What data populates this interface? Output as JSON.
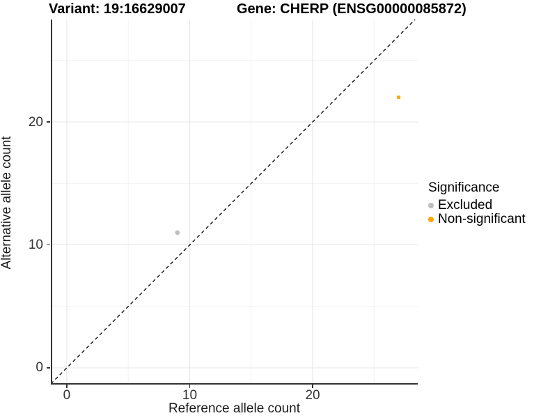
{
  "titles": {
    "left": "Variant: 19:16629007",
    "right": "Gene: CHERP (ENSG00000085872)"
  },
  "chart_data": {
    "type": "scatter",
    "xlabel": "Reference allele count",
    "ylabel": "Alternative allele count",
    "xlim": [
      -1.3,
      28.55
    ],
    "ylim": [
      -1.36,
      28.33
    ],
    "x_ticks": [
      0,
      10,
      20
    ],
    "y_ticks": [
      0,
      10,
      20
    ],
    "x_minor_ticks": [
      5,
      15,
      25
    ],
    "y_minor_ticks": [
      5,
      15,
      25
    ],
    "grid": true,
    "identity_line": {
      "style": "dashed",
      "color": "#000000",
      "from": -1.3,
      "to": 28.33
    },
    "series": [
      {
        "name": "Excluded",
        "color": "#BEBEBE",
        "marker_radius": 3.4,
        "points": [
          [
            9,
            11
          ]
        ]
      },
      {
        "name": "Non-significant",
        "color": "#FFA500",
        "marker_radius": 2.7,
        "points": [
          [
            27,
            22
          ]
        ]
      }
    ],
    "legend": {
      "title": "Significance",
      "position": "right",
      "items": [
        {
          "label": "Excluded",
          "color": "#BEBEBE"
        },
        {
          "label": "Non-significant",
          "color": "#FFA500"
        }
      ]
    }
  },
  "style_colors": {
    "grid_major": "#e4e4e4",
    "grid_minor": "#f2f2f2",
    "axis_line": "#333333",
    "tick_text": "#333333"
  }
}
